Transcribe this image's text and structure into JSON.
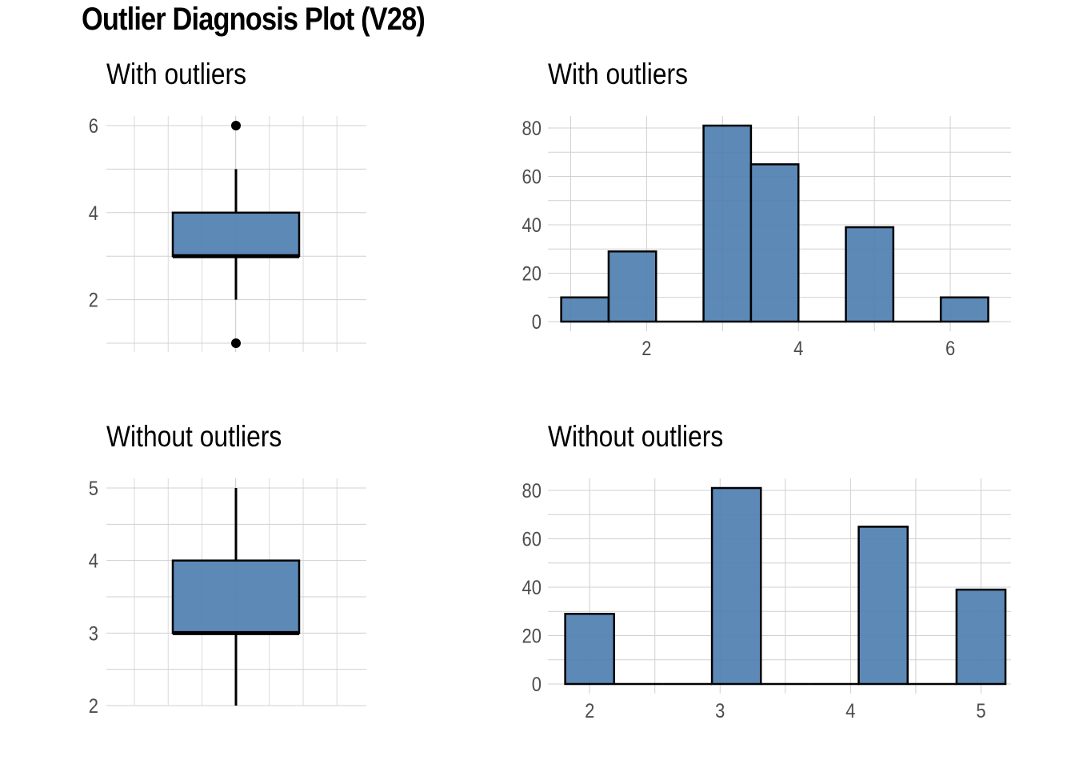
{
  "title": "Outlier Diagnosis Plot (V28)",
  "colors": {
    "fill": "#4f7fb1",
    "outline": "#000000",
    "grid": "#d0d0d0",
    "tick_text": "#4d4d4d"
  },
  "chart_data": [
    {
      "id": "box_with",
      "type": "box",
      "title": "With outliers",
      "ylim": [
        1,
        6
      ],
      "yticks": [
        2,
        4,
        6
      ],
      "box": {
        "whisker_low": 2,
        "q1": 3,
        "median": 3,
        "q3": 4,
        "whisker_high": 5
      },
      "outliers": [
        1,
        6
      ],
      "grid": true
    },
    {
      "id": "hist_with",
      "type": "bar",
      "title": "With outliers",
      "xlim": [
        0.7,
        6.8
      ],
      "ylim": [
        0,
        81
      ],
      "xticks": [
        2,
        4,
        6
      ],
      "yticks": [
        0,
        20,
        40,
        60,
        80
      ],
      "bins": [
        {
          "x0": 0.875,
          "x1": 1.5,
          "count": 10
        },
        {
          "x0": 1.5,
          "x1": 2.125,
          "count": 29
        },
        {
          "x0": 2.125,
          "x1": 2.75,
          "count": 0
        },
        {
          "x0": 2.75,
          "x1": 3.375,
          "count": 81
        },
        {
          "x0": 3.375,
          "x1": 4.0,
          "count": 65
        },
        {
          "x0": 4.0,
          "x1": 4.625,
          "count": 0
        },
        {
          "x0": 4.625,
          "x1": 5.25,
          "count": 39
        },
        {
          "x0": 5.25,
          "x1": 5.875,
          "count": 0
        },
        {
          "x0": 5.875,
          "x1": 6.5,
          "count": 10
        }
      ],
      "grid": true
    },
    {
      "id": "box_without",
      "type": "box",
      "title": "Without outliers",
      "ylim": [
        2,
        5
      ],
      "yticks": [
        2,
        3,
        4,
        5
      ],
      "box": {
        "whisker_low": 2,
        "q1": 3,
        "median": 3,
        "q3": 4,
        "whisker_high": 5
      },
      "outliers": [],
      "grid": true
    },
    {
      "id": "hist_without",
      "type": "bar",
      "title": "Without outliers",
      "xlim": [
        1.68,
        5.23
      ],
      "ylim": [
        0,
        81
      ],
      "xticks": [
        2,
        3,
        4,
        5
      ],
      "yticks": [
        0,
        20,
        40,
        60,
        80
      ],
      "bins": [
        {
          "x0": 1.8125,
          "x1": 2.1875,
          "count": 29
        },
        {
          "x0": 2.1875,
          "x1": 2.5625,
          "count": 0
        },
        {
          "x0": 2.5625,
          "x1": 2.9375,
          "count": 0
        },
        {
          "x0": 2.9375,
          "x1": 3.3125,
          "count": 81
        },
        {
          "x0": 3.3125,
          "x1": 3.6875,
          "count": 0
        },
        {
          "x0": 3.6875,
          "x1": 4.0625,
          "count": 0
        },
        {
          "x0": 4.0625,
          "x1": 4.4375,
          "count": 65
        },
        {
          "x0": 4.4375,
          "x1": 4.8125,
          "count": 0
        },
        {
          "x0": 4.8125,
          "x1": 5.1875,
          "count": 39
        }
      ],
      "grid": true
    }
  ]
}
